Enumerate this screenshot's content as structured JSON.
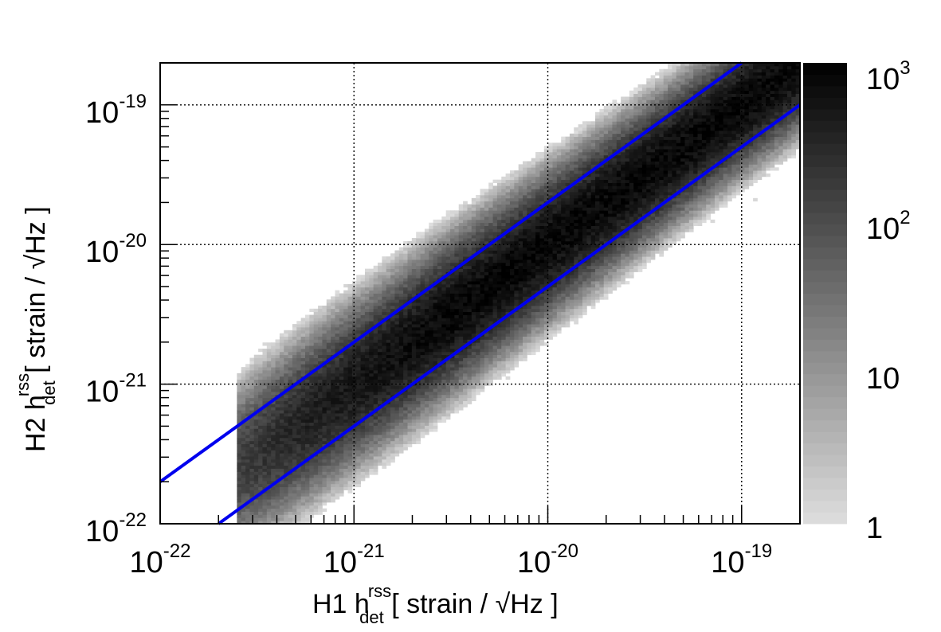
{
  "chart_data": {
    "type": "heatmap",
    "title": "",
    "x_axis": {
      "scale": "log",
      "range": [
        1e-22,
        2e-19
      ],
      "major_ticks": [
        {
          "value": 1e-22,
          "base": "10",
          "exp": "-22"
        },
        {
          "value": 1e-21,
          "base": "10",
          "exp": "-21"
        },
        {
          "value": 1e-20,
          "base": "10",
          "exp": "-20"
        },
        {
          "value": 1e-19,
          "base": "10",
          "exp": "-19"
        }
      ],
      "label": {
        "prefix": "H1 h",
        "sup": "rss",
        "sub": "det",
        "suffix": " [ strain / √Hz ]"
      }
    },
    "y_axis": {
      "scale": "log",
      "range": [
        1e-22,
        2e-19
      ],
      "major_ticks": [
        {
          "value": 1e-22,
          "base": "10",
          "exp": "-22"
        },
        {
          "value": 1e-21,
          "base": "10",
          "exp": "-21"
        },
        {
          "value": 1e-20,
          "base": "10",
          "exp": "-20"
        },
        {
          "value": 1e-19,
          "base": "10",
          "exp": "-19"
        }
      ],
      "label": {
        "prefix": "H2 h",
        "sup": "rss",
        "sub": "det",
        "suffix": " [ strain / √Hz ]"
      }
    },
    "grid": true,
    "grid_style": "dotted",
    "colorbar": {
      "scale": "log",
      "range": [
        1,
        1200
      ],
      "labels": [
        {
          "value": 1,
          "base": "1",
          "exp": ""
        },
        {
          "value": 10,
          "base": "10",
          "exp": ""
        },
        {
          "value": 100,
          "base": "10",
          "exp": "2"
        },
        {
          "value": 1000,
          "base": "10",
          "exp": "3"
        }
      ],
      "colormap": "grayscale"
    },
    "density_model": {
      "description_x_start": 2.5e-22,
      "x_end": 2e-19,
      "ridge_ratio": 1.0,
      "peak_count": 1000
    },
    "series": [
      {
        "kind": "line",
        "color": "#0000ee",
        "ratio": 2.0,
        "x_range": [
          1e-22,
          1e-19
        ]
      },
      {
        "kind": "line",
        "color": "#0000ee",
        "ratio": 0.5,
        "x_range": [
          2e-22,
          2e-19
        ]
      }
    ]
  },
  "colors": {
    "line": "#0000ee",
    "frame": "#000000",
    "grid": "#000000"
  }
}
